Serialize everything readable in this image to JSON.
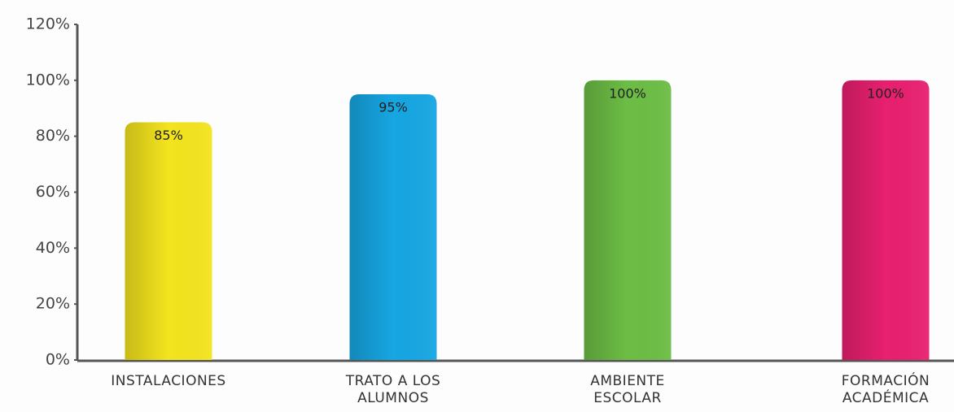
{
  "chart_data": {
    "type": "bar",
    "categories": [
      "INSTALACIONES",
      "TRATO A LOS\nALUMNOS",
      "AMBIENTE\nESCOLAR",
      "FORMACIÓN\nACADÉMICA"
    ],
    "values": [
      85,
      95,
      100,
      100
    ],
    "value_labels": [
      "85%",
      "95%",
      "100%",
      "100%"
    ],
    "colors": [
      "#f3e41e",
      "#16a6e2",
      "#6cbd45",
      "#e8206f"
    ],
    "ylim": [
      0,
      120
    ],
    "yticks": [
      {
        "value": 0,
        "label": "0%"
      },
      {
        "value": 20,
        "label": "20%"
      },
      {
        "value": 40,
        "label": "40%"
      },
      {
        "value": 60,
        "label": "60%"
      },
      {
        "value": 80,
        "label": "80%"
      },
      {
        "value": 100,
        "label": "100%"
      },
      {
        "value": 120,
        "label": "120%"
      }
    ]
  }
}
